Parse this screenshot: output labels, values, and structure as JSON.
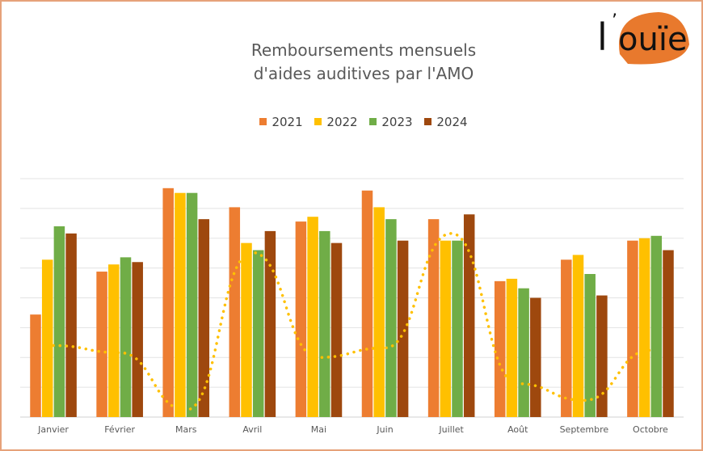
{
  "brand": {
    "logo_text_l": "l",
    "logo_text_main": "ouïe",
    "logo_color": "#e8792d"
  },
  "chart_data": {
    "type": "bar",
    "title_line1": "Remboursements mensuels",
    "title_line2": "d'aides auditives par l'AMO",
    "categories": [
      "Janvier",
      "Février",
      "Mars",
      "Avril",
      "Mai",
      "Juin",
      "Juillet",
      "Août",
      "Septembre",
      "Octobre"
    ],
    "series": [
      {
        "name": "2021",
        "color": "#ed7d31",
        "values": [
          43,
          61,
          96,
          88,
          82,
          95,
          83,
          57,
          66,
          74
        ]
      },
      {
        "name": "2022",
        "color": "#ffc000",
        "values": [
          66,
          64,
          94,
          73,
          84,
          88,
          74,
          58,
          68,
          75
        ]
      },
      {
        "name": "2023",
        "color": "#70ad47",
        "values": [
          80,
          67,
          94,
          70,
          78,
          83,
          74,
          54,
          60,
          76
        ]
      },
      {
        "name": "2024",
        "color": "#9e480e",
        "values": [
          77,
          65,
          83,
          78,
          73,
          74,
          85,
          50,
          51,
          70
        ]
      }
    ],
    "trend": {
      "color": "#ffc000",
      "style": "dotted",
      "values": [
        30,
        27,
        3,
        69,
        25,
        29,
        77,
        14,
        7,
        28
      ]
    },
    "ylim": [
      0,
      100
    ],
    "grid": true,
    "legend_position": "top"
  }
}
